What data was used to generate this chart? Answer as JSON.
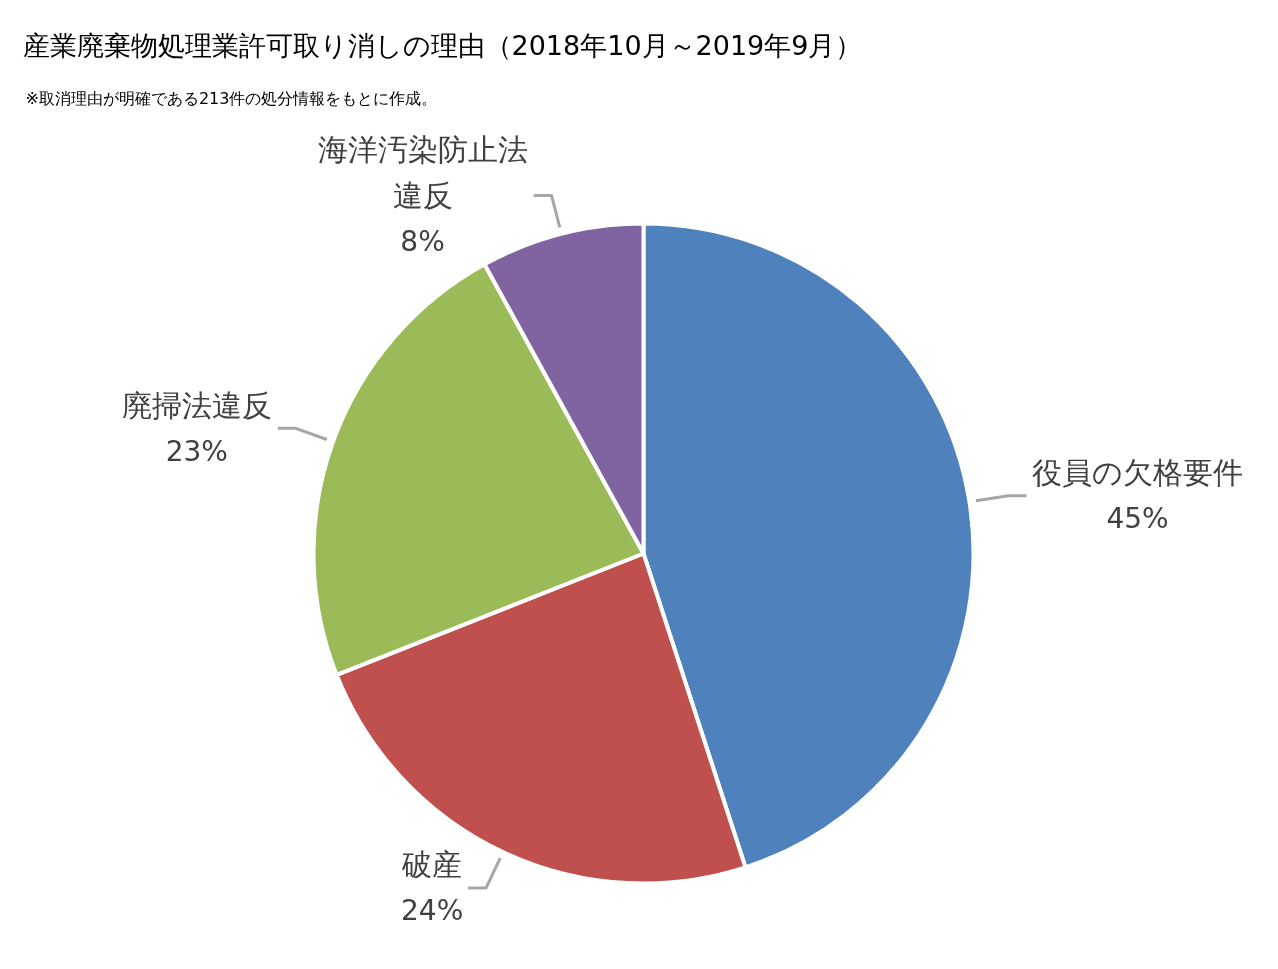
{
  "chart_data": {
    "type": "pie",
    "title": "産業廃棄物処理業許可取り消しの理由（2018年10月～2019年9月）",
    "subtitle": "※取消理由が明確である213件の処分情報をもとに作成。",
    "categories": [
      "役員の欠格要件",
      "破産",
      "廃掃法違反",
      "海洋汚染防止法違反"
    ],
    "values": [
      45,
      24,
      23,
      8
    ],
    "colors": [
      "#4f81bd",
      "#c0504d",
      "#9bbb59",
      "#8064a2"
    ],
    "value_labels": [
      "45%",
      "24%",
      "23%",
      "8%"
    ]
  }
}
